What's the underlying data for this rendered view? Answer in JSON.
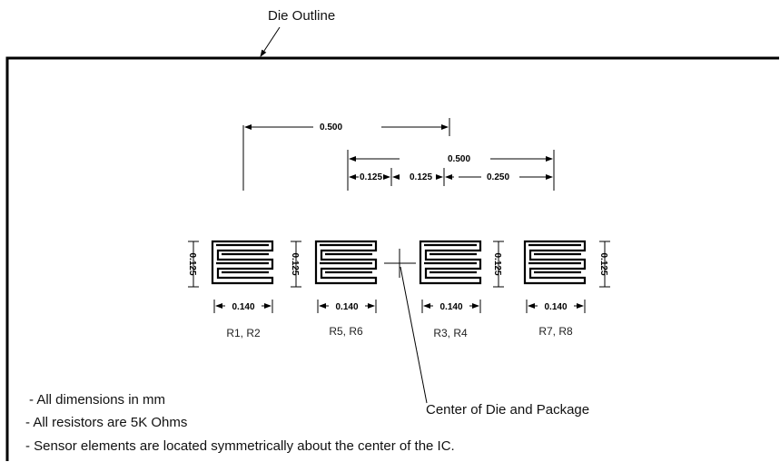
{
  "labels": {
    "die_outline": "Die Outline",
    "center": "Center of Die and Package"
  },
  "dimensions": {
    "top_span": "0.500",
    "second_span": "0.500",
    "offset_left": "0.125",
    "offset_right": "0.125",
    "offset_far": "0.250",
    "element_width": "0.140",
    "element_height": "0.125"
  },
  "resistors": [
    {
      "name": "R1, R2"
    },
    {
      "name": "R5, R6"
    },
    {
      "name": "R3, R4"
    },
    {
      "name": "R7, R8"
    }
  ],
  "notes": [
    "- All dimensions in mm",
    "- All resistors are 5K Ohms",
    "- Sensor elements are located symmetrically about the center of the IC."
  ]
}
